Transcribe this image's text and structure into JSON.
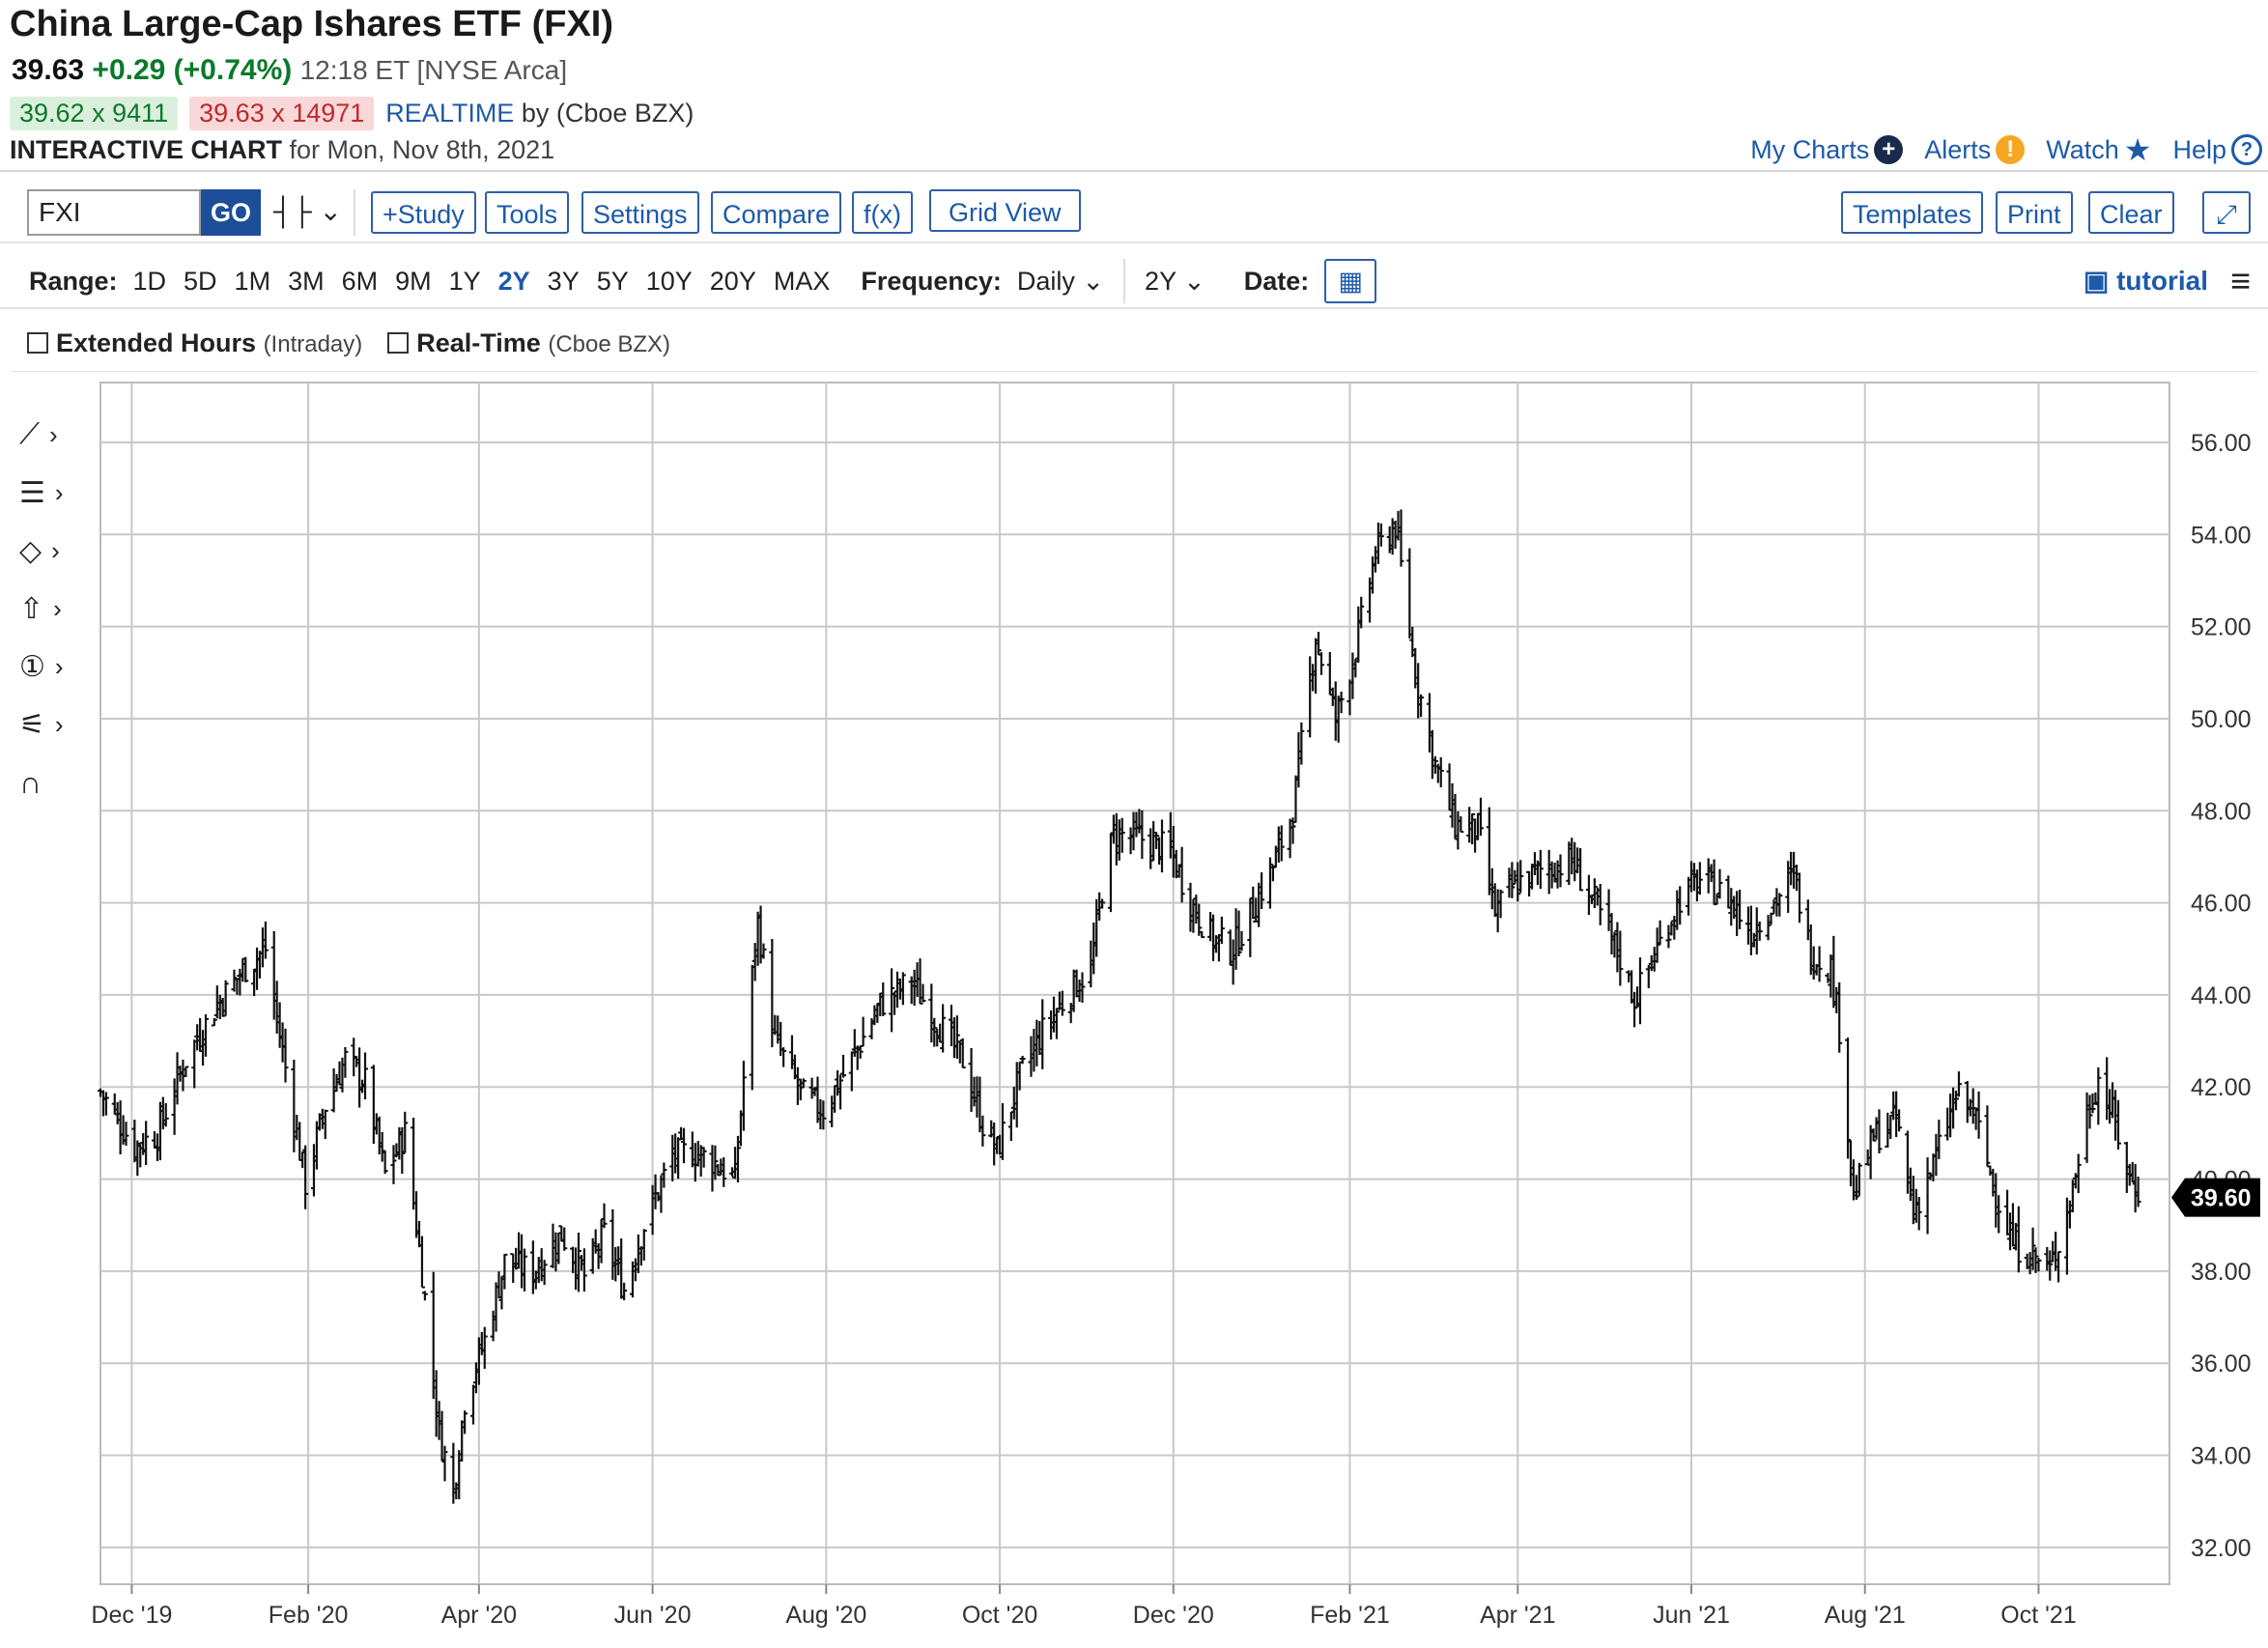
{
  "header": {
    "title": "China Large-Cap Ishares ETF (FXI)",
    "last": "39.63",
    "change": "+0.29 (+0.74%)",
    "time": "12:18 ET [NYSE Arca]",
    "bid": "39.62 x 9411",
    "ask": "39.63 x 14971",
    "realtime": "REALTIME",
    "realtime_by": "by (Cboe BZX)",
    "chart_label": "INTERACTIVE CHART",
    "chart_date": "for Mon, Nov 8th, 2021"
  },
  "top_links": {
    "my_charts": "My Charts",
    "alerts": "Alerts",
    "watch": "Watch",
    "help": "Help"
  },
  "toolbar": {
    "symbol": "FXI",
    "go": "GO",
    "study": "+Study",
    "tools": "Tools",
    "settings": "Settings",
    "compare": "Compare",
    "fx": "f(x)",
    "grid_view": "Grid View",
    "templates": "Templates",
    "print": "Print",
    "clear": "Clear"
  },
  "range_bar": {
    "range_label": "Range:",
    "ranges": [
      "1D",
      "5D",
      "1M",
      "3M",
      "6M",
      "9M",
      "1Y",
      "2Y",
      "3Y",
      "5Y",
      "10Y",
      "20Y",
      "MAX"
    ],
    "selected": "2Y",
    "frequency_label": "Frequency:",
    "frequency": "Daily",
    "period": "2Y",
    "date_label": "Date:",
    "tutorial": "tutorial"
  },
  "options": {
    "extended_hours": "Extended Hours",
    "extended_hours_note": "(Intraday)",
    "real_time": "Real-Time",
    "real_time_note": "(Cboe BZX)"
  },
  "icons": [
    "line-tool-icon",
    "fib-tool-icon",
    "shape-tool-icon",
    "arrow-tool-icon",
    "annotation-tool-icon",
    "measure-tool-icon",
    "magnet-icon",
    "calendar-icon",
    "menu-icon",
    "plus-icon",
    "alert-icon",
    "star-icon",
    "help-icon",
    "expand-icon",
    "chart-type-icon"
  ],
  "chart_data": {
    "type": "ohlc",
    "frequency": "Daily",
    "y_ticks": [
      "32.00",
      "34.00",
      "36.00",
      "38.00",
      "40.00",
      "42.00",
      "44.00",
      "46.00",
      "48.00",
      "50.00",
      "52.00",
      "54.00",
      "56.00"
    ],
    "ylim": [
      31.2,
      57.3
    ],
    "x_ticks": [
      "Dec '19",
      "Feb '20",
      "Apr '20",
      "Jun '20",
      "Aug '20",
      "Oct '20",
      "Dec '20",
      "Feb '21",
      "Apr '21",
      "Jun '21",
      "Aug '21",
      "Oct '21"
    ],
    "x_tick_dates": [
      "2019-12-01",
      "2020-02-01",
      "2020-04-01",
      "2020-06-01",
      "2020-08-01",
      "2020-10-01",
      "2020-12-01",
      "2021-02-01",
      "2021-04-01",
      "2021-06-01",
      "2021-08-01",
      "2021-10-01"
    ],
    "x_range": [
      "2019-11-20",
      "2021-11-16"
    ],
    "last_price_label": "39.60",
    "grid": true,
    "series": [
      {
        "date": "2019-11-20",
        "close": 41.9
      },
      {
        "date": "2019-12-02",
        "close": 40.7
      },
      {
        "date": "2019-12-10",
        "close": 41.0
      },
      {
        "date": "2019-12-20",
        "close": 42.6
      },
      {
        "date": "2019-12-31",
        "close": 43.8
      },
      {
        "date": "2020-01-10",
        "close": 44.6
      },
      {
        "date": "2020-01-17",
        "close": 45.0
      },
      {
        "date": "2020-01-21",
        "close": 43.5
      },
      {
        "date": "2020-01-31",
        "close": 39.9
      },
      {
        "date": "2020-02-07",
        "close": 41.6
      },
      {
        "date": "2020-02-14",
        "close": 42.6
      },
      {
        "date": "2020-02-21",
        "close": 42.1
      },
      {
        "date": "2020-02-28",
        "close": 40.1
      },
      {
        "date": "2020-03-06",
        "close": 41.0
      },
      {
        "date": "2020-03-12",
        "close": 38.0
      },
      {
        "date": "2020-03-18",
        "close": 34.5
      },
      {
        "date": "2020-03-23",
        "close": 33.2
      },
      {
        "date": "2020-03-27",
        "close": 35.2
      },
      {
        "date": "2020-04-03",
        "close": 36.5
      },
      {
        "date": "2020-04-10",
        "close": 38.2
      },
      {
        "date": "2020-04-20",
        "close": 38.0
      },
      {
        "date": "2020-04-30",
        "close": 38.8
      },
      {
        "date": "2020-05-08",
        "close": 37.9
      },
      {
        "date": "2020-05-15",
        "close": 38.8
      },
      {
        "date": "2020-05-22",
        "close": 37.6
      },
      {
        "date": "2020-05-29",
        "close": 39.0
      },
      {
        "date": "2020-06-08",
        "close": 40.5
      },
      {
        "date": "2020-06-15",
        "close": 40.6
      },
      {
        "date": "2020-06-22",
        "close": 40.4
      },
      {
        "date": "2020-06-30",
        "close": 40.0
      },
      {
        "date": "2020-07-06",
        "close": 44.4
      },
      {
        "date": "2020-07-08",
        "close": 45.6
      },
      {
        "date": "2020-07-14",
        "close": 43.0
      },
      {
        "date": "2020-07-24",
        "close": 41.8
      },
      {
        "date": "2020-07-31",
        "close": 41.5
      },
      {
        "date": "2020-08-10",
        "close": 42.6
      },
      {
        "date": "2020-08-20",
        "close": 43.8
      },
      {
        "date": "2020-08-31",
        "close": 44.3
      },
      {
        "date": "2020-09-08",
        "close": 43.5
      },
      {
        "date": "2020-09-18",
        "close": 42.6
      },
      {
        "date": "2020-09-25",
        "close": 41.2
      },
      {
        "date": "2020-09-30",
        "close": 40.6
      },
      {
        "date": "2020-10-08",
        "close": 42.2
      },
      {
        "date": "2020-10-16",
        "close": 43.2
      },
      {
        "date": "2020-10-26",
        "close": 44.1
      },
      {
        "date": "2020-11-02",
        "close": 44.6
      },
      {
        "date": "2020-11-06",
        "close": 46.3
      },
      {
        "date": "2020-11-10",
        "close": 47.5
      },
      {
        "date": "2020-11-20",
        "close": 47.4
      },
      {
        "date": "2020-11-30",
        "close": 47.1
      },
      {
        "date": "2020-12-08",
        "close": 45.9
      },
      {
        "date": "2020-12-15",
        "close": 45.2
      },
      {
        "date": "2020-12-22",
        "close": 45.0
      },
      {
        "date": "2021-01-05",
        "close": 46.8
      },
      {
        "date": "2021-01-12",
        "close": 48.0
      },
      {
        "date": "2021-01-20",
        "close": 51.8
      },
      {
        "date": "2021-01-27",
        "close": 50.0
      },
      {
        "date": "2021-02-03",
        "close": 51.5
      },
      {
        "date": "2021-02-10",
        "close": 53.6
      },
      {
        "date": "2021-02-17",
        "close": 54.2
      },
      {
        "date": "2021-02-24",
        "close": 51.0
      },
      {
        "date": "2021-03-03",
        "close": 49.0
      },
      {
        "date": "2021-03-10",
        "close": 47.7
      },
      {
        "date": "2021-03-18",
        "close": 47.6
      },
      {
        "date": "2021-03-24",
        "close": 45.8
      },
      {
        "date": "2021-03-31",
        "close": 46.4
      },
      {
        "date": "2021-04-09",
        "close": 46.7
      },
      {
        "date": "2021-04-20",
        "close": 46.9
      },
      {
        "date": "2021-04-28",
        "close": 46.0
      },
      {
        "date": "2021-05-07",
        "close": 44.8
      },
      {
        "date": "2021-05-12",
        "close": 43.9
      },
      {
        "date": "2021-05-20",
        "close": 45.0
      },
      {
        "date": "2021-05-28",
        "close": 46.1
      },
      {
        "date": "2021-06-04",
        "close": 46.5
      },
      {
        "date": "2021-06-14",
        "close": 46.1
      },
      {
        "date": "2021-06-22",
        "close": 45.4
      },
      {
        "date": "2021-06-30",
        "close": 46.0
      },
      {
        "date": "2021-07-07",
        "close": 46.6
      },
      {
        "date": "2021-07-13",
        "close": 44.9
      },
      {
        "date": "2021-07-20",
        "close": 44.6
      },
      {
        "date": "2021-07-23",
        "close": 43.3
      },
      {
        "date": "2021-07-28",
        "close": 39.6
      },
      {
        "date": "2021-08-04",
        "close": 40.9
      },
      {
        "date": "2021-08-12",
        "close": 41.3
      },
      {
        "date": "2021-08-18",
        "close": 39.3
      },
      {
        "date": "2021-08-25",
        "close": 40.3
      },
      {
        "date": "2021-09-02",
        "close": 41.8
      },
      {
        "date": "2021-09-08",
        "close": 41.5
      },
      {
        "date": "2021-09-15",
        "close": 39.9
      },
      {
        "date": "2021-09-22",
        "close": 38.6
      },
      {
        "date": "2021-09-28",
        "close": 38.4
      },
      {
        "date": "2021-10-05",
        "close": 38.0
      },
      {
        "date": "2021-10-12",
        "close": 39.5
      },
      {
        "date": "2021-10-18",
        "close": 41.4
      },
      {
        "date": "2021-10-22",
        "close": 42.2
      },
      {
        "date": "2021-10-27",
        "close": 41.4
      },
      {
        "date": "2021-11-02",
        "close": 40.0
      },
      {
        "date": "2021-11-08",
        "close": 39.6
      }
    ]
  }
}
